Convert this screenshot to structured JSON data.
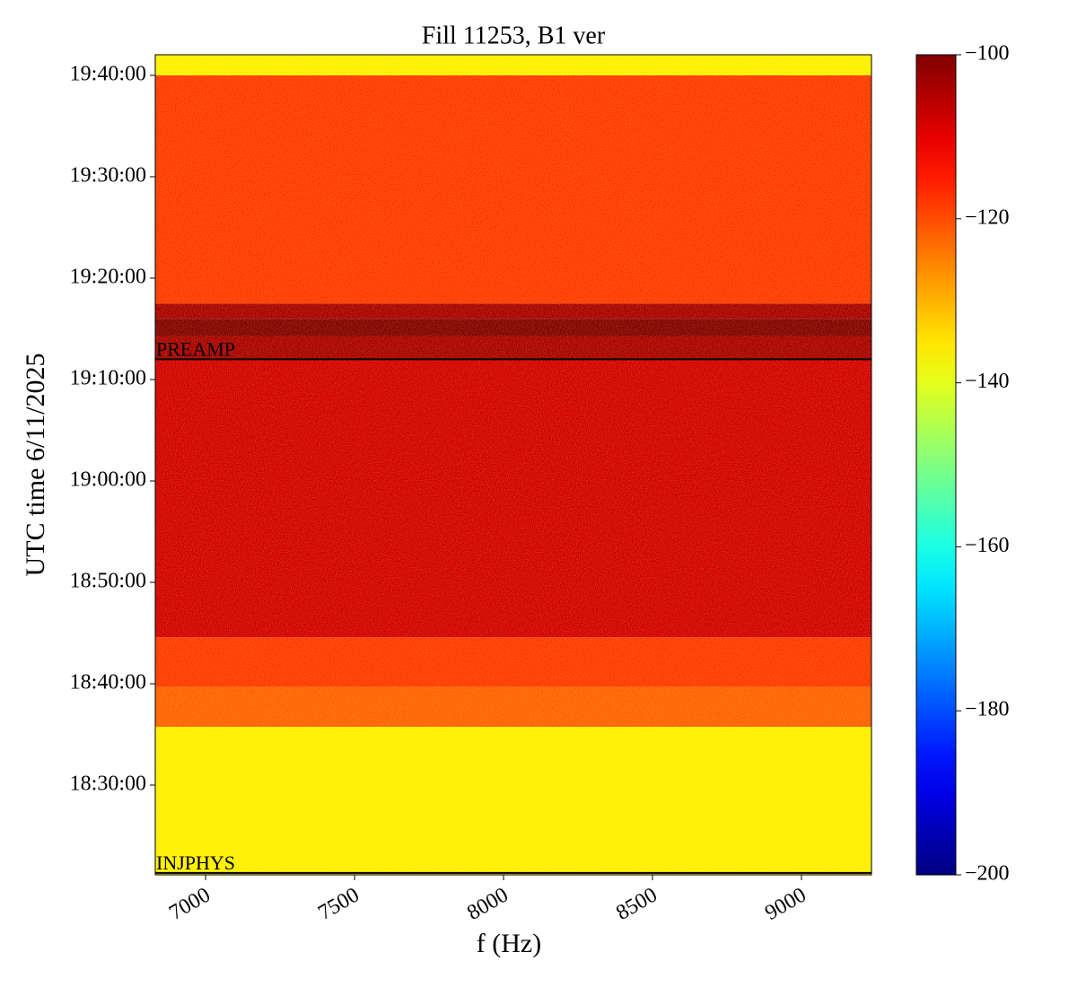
{
  "chart_data": {
    "type": "heatmap",
    "title": "Fill 11253, B1 ver",
    "xlabel": "f (Hz)",
    "ylabel": "UTC time 6/11/2025",
    "xlim": [
      6831,
      9235
    ],
    "xticks": [
      7000,
      7500,
      8000,
      8500,
      9000
    ],
    "ylim": [
      "18:21:09",
      "19:42:02"
    ],
    "yticks": [
      "18:30:00",
      "18:40:00",
      "18:50:00",
      "19:00:00",
      "19:10:00",
      "19:20:00",
      "19:30:00",
      "19:40:00"
    ],
    "colormap": "jet",
    "clim": [
      -200,
      -100
    ],
    "cticks": [
      {
        "value": -200,
        "label": "−200"
      },
      {
        "value": -180,
        "label": "−180"
      },
      {
        "value": -160,
        "label": "−160"
      },
      {
        "value": -140,
        "label": "−140"
      },
      {
        "value": -120,
        "label": "−120"
      },
      {
        "value": -100,
        "label": "−100"
      }
    ],
    "bands": [
      {
        "start": "18:21:09",
        "end": "18:35:45",
        "level": -136
      },
      {
        "start": "18:35:45",
        "end": "18:39:42",
        "level": -122
      },
      {
        "start": "18:39:42",
        "end": "18:44:35",
        "level": -118
      },
      {
        "start": "18:44:35",
        "end": "19:12:00",
        "level": -108
      },
      {
        "start": "19:12:00",
        "end": "19:14:15",
        "level": -104
      },
      {
        "start": "19:14:15",
        "end": "19:16:00",
        "level": -100
      },
      {
        "start": "19:16:00",
        "end": "19:17:30",
        "level": -104
      },
      {
        "start": "19:17:30",
        "end": "19:40:00",
        "level": -118
      },
      {
        "start": "19:40:00",
        "end": "19:42:02",
        "level": -136
      }
    ],
    "annotations": [
      {
        "text": "PREAMP",
        "time": "19:12:00"
      },
      {
        "text": "INJPHYS",
        "time": "18:21:20"
      }
    ]
  }
}
